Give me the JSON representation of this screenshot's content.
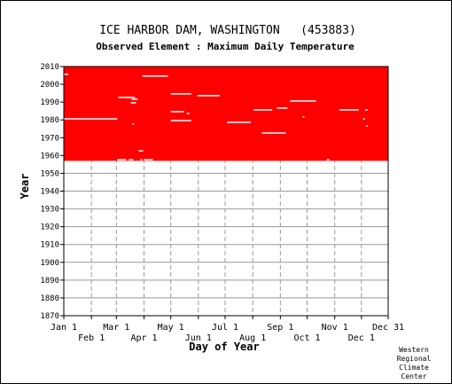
{
  "chart_data": {
    "type": "heatmap",
    "title": "ICE HARBOR DAM, WASHINGTON   (453883)",
    "subtitle": "Observed Element : Maximum Daily Temperature",
    "xlabel": "Day of Year",
    "ylabel": "Year",
    "x_ticks_top": [
      "Jan 1",
      "Mar 1",
      "May 1",
      "Jul 1",
      "Sep 1",
      "Nov 1",
      "Dec 31"
    ],
    "x_ticks_bottom": [
      "Feb 1",
      "Apr 1",
      "Jun 1",
      "Aug 1",
      "Oct 1",
      "Dec 1"
    ],
    "x_tick_days": {
      "Jan 1": 1,
      "Feb 1": 32,
      "Mar 1": 60,
      "Apr 1": 91,
      "May 1": 121,
      "Jun 1": 152,
      "Jul 1": 182,
      "Aug 1": 213,
      "Sep 1": 244,
      "Oct 1": 274,
      "Nov 1": 305,
      "Dec 1": 335,
      "Dec 31": 365
    },
    "xlim": [
      1,
      365
    ],
    "ylim": [
      1870,
      2010
    ],
    "y_ticks": [
      1870,
      1880,
      1890,
      1900,
      1910,
      1920,
      1930,
      1940,
      1950,
      1960,
      1970,
      1980,
      1990,
      2000,
      2010
    ],
    "grid": true,
    "data_color": "#ff0000",
    "record": {
      "start_year": 1957,
      "end_year": 2010,
      "description_of_fill": "observed days"
    },
    "missing_segments": [
      {
        "year": 2005,
        "day_start": 1,
        "day_end": 5
      },
      {
        "year": 2004,
        "day_start": 89,
        "day_end": 117
      },
      {
        "year": 1994,
        "day_start": 121,
        "day_end": 143
      },
      {
        "year": 1993,
        "day_start": 151,
        "day_end": 175
      },
      {
        "year": 1992,
        "day_start": 62,
        "day_end": 80
      },
      {
        "year": 1992,
        "day_start": 71,
        "day_end": 75
      },
      {
        "year": 1991,
        "day_start": 77,
        "day_end": 83
      },
      {
        "year": 1989,
        "day_start": 76,
        "day_end": 81
      },
      {
        "year": 1990,
        "day_start": 255,
        "day_end": 283
      },
      {
        "year": 1986,
        "day_start": 240,
        "day_end": 251
      },
      {
        "year": 1985,
        "day_start": 214,
        "day_end": 234
      },
      {
        "year": 1985,
        "day_start": 310,
        "day_end": 331
      },
      {
        "year": 1985,
        "day_start": 339,
        "day_end": 341
      },
      {
        "year": 1984,
        "day_start": 121,
        "day_end": 135
      },
      {
        "year": 1983,
        "day_start": 139,
        "day_end": 141
      },
      {
        "year": 1980,
        "day_start": 1,
        "day_end": 60
      },
      {
        "year": 1979,
        "day_start": 121,
        "day_end": 143
      },
      {
        "year": 1978,
        "day_start": 184,
        "day_end": 210
      },
      {
        "year": 1972,
        "day_start": 223,
        "day_end": 249
      },
      {
        "year": 1981,
        "day_start": 269,
        "day_end": 270
      },
      {
        "year": 1980,
        "day_start": 337,
        "day_end": 338
      },
      {
        "year": 1977,
        "day_start": 78,
        "day_end": 79
      },
      {
        "year": 1976,
        "day_start": 340,
        "day_end": 341
      },
      {
        "year": 1962,
        "day_start": 85,
        "day_end": 89
      },
      {
        "year": 1957,
        "day_start": 61,
        "day_end": 70
      },
      {
        "year": 1957,
        "day_start": 74,
        "day_end": 78
      },
      {
        "year": 1957,
        "day_start": 87,
        "day_end": 88
      },
      {
        "year": 1957,
        "day_start": 91,
        "day_end": 100
      },
      {
        "year": 1957,
        "day_start": 296,
        "day_end": 298
      }
    ]
  },
  "credit_lines": [
    "Western",
    "Regional",
    "Climate",
    "Center"
  ]
}
